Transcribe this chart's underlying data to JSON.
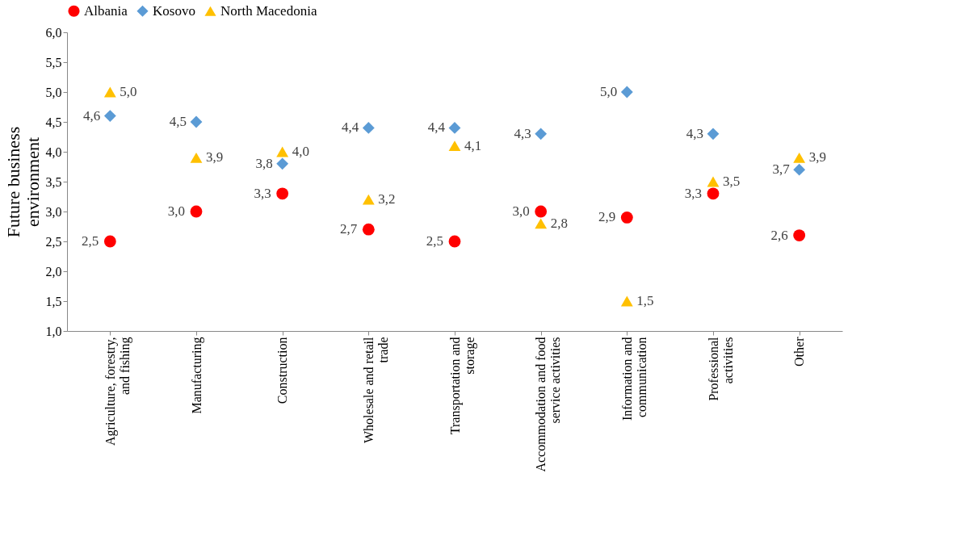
{
  "chart_data": {
    "type": "scatter",
    "ylabel": "Future business environment",
    "categories": [
      "Agriculture, forestry, and fishing",
      "Manufacturing",
      "Construction",
      "Wholesale and retail trade",
      "Transportation and storage",
      "Accommodation and food service activities",
      "Information and communication",
      "Professional activities",
      "Other"
    ],
    "series": [
      {
        "name": "Albania",
        "color": "#ff0000",
        "marker": "circle",
        "values": [
          2.5,
          3.0,
          3.3,
          2.7,
          2.5,
          3.0,
          2.9,
          3.3,
          2.6
        ],
        "value_labels": [
          "2,5",
          "3,0",
          "3,3",
          "2,7",
          "2,5",
          "3,0",
          "2,9",
          "3,3",
          "2,6"
        ]
      },
      {
        "name": "Kosovo",
        "color": "#5b9bd5",
        "marker": "diamond",
        "values": [
          4.6,
          4.5,
          3.8,
          4.4,
          4.4,
          4.3,
          5.0,
          4.3,
          3.7
        ],
        "value_labels": [
          "4,6",
          "4,5",
          "3,8",
          "4,4",
          "4,4",
          "4,3",
          "5,0",
          "4,3",
          "3,7"
        ]
      },
      {
        "name": "North Macedonia",
        "color": "#ffc000",
        "marker": "triangle",
        "values": [
          5.0,
          3.9,
          4.0,
          3.2,
          4.1,
          2.8,
          1.5,
          3.5,
          3.9
        ],
        "value_labels": [
          "5,0",
          "3,9",
          "4,0",
          "3,2",
          "4,1",
          "2,8",
          "1,5",
          "3,5",
          "3,9"
        ]
      }
    ],
    "ylim": [
      1.0,
      6.0
    ],
    "yticks": [
      {
        "value": 1.0,
        "label": "1,0"
      },
      {
        "value": 1.5,
        "label": "1,5"
      },
      {
        "value": 2.0,
        "label": "2,0"
      },
      {
        "value": 2.5,
        "label": "2,5"
      },
      {
        "value": 3.0,
        "label": "3,0"
      },
      {
        "value": 3.5,
        "label": "3,5"
      },
      {
        "value": 4.0,
        "label": "4,0"
      },
      {
        "value": 4.5,
        "label": "4,5"
      },
      {
        "value": 5.0,
        "label": "5,0"
      },
      {
        "value": 5.5,
        "label": "5,5"
      },
      {
        "value": 6.0,
        "label": "6,0"
      }
    ],
    "grid": false,
    "legend": "top"
  }
}
